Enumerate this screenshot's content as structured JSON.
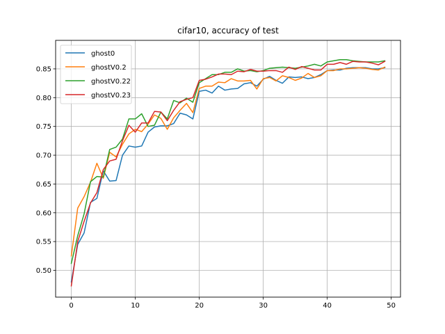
{
  "chart_data": {
    "type": "line",
    "title": "cifar10, accuracy of test",
    "xlabel": "",
    "ylabel": "",
    "xlim": [
      -2.45,
      51.45
    ],
    "ylim": [
      0.4535,
      0.8995
    ],
    "xticks": [
      0,
      10,
      20,
      30,
      40,
      50
    ],
    "yticks": [
      0.5,
      0.55,
      0.6,
      0.65,
      0.7,
      0.75,
      0.8,
      0.85
    ],
    "grid": true,
    "legend_position": "top-left",
    "x": [
      0,
      1,
      2,
      3,
      4,
      5,
      6,
      7,
      8,
      9,
      10,
      11,
      12,
      13,
      14,
      15,
      16,
      17,
      18,
      19,
      20,
      21,
      22,
      23,
      24,
      25,
      26,
      27,
      28,
      29,
      30,
      31,
      32,
      33,
      34,
      35,
      36,
      37,
      38,
      39,
      40,
      41,
      42,
      43,
      44,
      45,
      46,
      47,
      48,
      49
    ],
    "series": [
      {
        "name": "ghost0",
        "color": "#1f77b4",
        "values": [
          0.48,
          0.545,
          0.565,
          0.618,
          0.625,
          0.673,
          0.655,
          0.656,
          0.7,
          0.716,
          0.714,
          0.716,
          0.74,
          0.749,
          0.751,
          0.751,
          0.755,
          0.773,
          0.77,
          0.763,
          0.811,
          0.813,
          0.808,
          0.82,
          0.813,
          0.815,
          0.816,
          0.824,
          0.826,
          0.82,
          0.832,
          0.837,
          0.83,
          0.825,
          0.836,
          0.835,
          0.836,
          0.833,
          0.835,
          0.84,
          0.847,
          0.848,
          0.848,
          0.851,
          0.852,
          0.852,
          0.852,
          0.85,
          0.85,
          0.852
        ]
      },
      {
        "name": "ghostV0.2",
        "color": "#ff7f0e",
        "values": [
          0.525,
          0.608,
          0.628,
          0.653,
          0.686,
          0.66,
          0.705,
          0.697,
          0.719,
          0.737,
          0.745,
          0.741,
          0.754,
          0.77,
          0.764,
          0.745,
          0.765,
          0.778,
          0.79,
          0.774,
          0.816,
          0.82,
          0.82,
          0.827,
          0.826,
          0.833,
          0.829,
          0.829,
          0.83,
          0.815,
          0.833,
          0.835,
          0.829,
          0.838,
          0.835,
          0.83,
          0.834,
          0.842,
          0.835,
          0.838,
          0.847,
          0.847,
          0.85,
          0.85,
          0.851,
          0.852,
          0.851,
          0.849,
          0.848,
          0.853
        ]
      },
      {
        "name": "ghostV0.22",
        "color": "#2ca02c",
        "values": [
          0.512,
          0.56,
          0.598,
          0.654,
          0.663,
          0.662,
          0.71,
          0.714,
          0.728,
          0.763,
          0.763,
          0.772,
          0.75,
          0.752,
          0.775,
          0.763,
          0.795,
          0.791,
          0.799,
          0.792,
          0.826,
          0.833,
          0.84,
          0.84,
          0.844,
          0.844,
          0.85,
          0.846,
          0.847,
          0.845,
          0.847,
          0.851,
          0.852,
          0.853,
          0.852,
          0.851,
          0.853,
          0.855,
          0.858,
          0.855,
          0.862,
          0.864,
          0.866,
          0.866,
          0.864,
          0.863,
          0.862,
          0.862,
          0.862,
          0.864
        ]
      },
      {
        "name": "ghostV0.23",
        "color": "#d62728",
        "values": [
          0.473,
          0.55,
          0.585,
          0.617,
          0.635,
          0.675,
          0.69,
          0.693,
          0.725,
          0.752,
          0.74,
          0.756,
          0.756,
          0.776,
          0.775,
          0.76,
          0.778,
          0.793,
          0.797,
          0.8,
          0.83,
          0.832,
          0.836,
          0.841,
          0.841,
          0.84,
          0.846,
          0.845,
          0.849,
          0.846,
          0.846,
          0.847,
          0.847,
          0.844,
          0.853,
          0.849,
          0.854,
          0.851,
          0.848,
          0.848,
          0.858,
          0.858,
          0.861,
          0.858,
          0.863,
          0.862,
          0.862,
          0.86,
          0.857,
          0.863
        ]
      }
    ]
  }
}
